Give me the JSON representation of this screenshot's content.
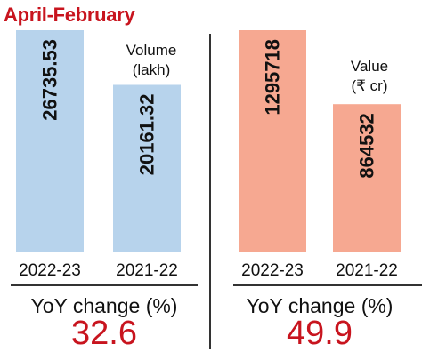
{
  "title": "April-February",
  "chart_data": [
    {
      "type": "bar",
      "categories": [
        "2022-23",
        "2021-22"
      ],
      "values": [
        26735.53,
        20161.32
      ],
      "value_labels": [
        "26735.53",
        "20161.32"
      ],
      "label_line1": "Volume",
      "label_line2": "(lakh)",
      "ylim": [
        0,
        26735.53
      ],
      "color": "#b7d3ec",
      "yoy_label": "YoY change (%)",
      "yoy_value": "32.6"
    },
    {
      "type": "bar",
      "categories": [
        "2022-23",
        "2021-22"
      ],
      "values": [
        1295718,
        864532
      ],
      "value_labels": [
        "1295718",
        "864532"
      ],
      "label_line1": "Value",
      "label_line2": "(₹ cr)",
      "ylim": [
        0,
        1295718
      ],
      "color": "#f6a891",
      "yoy_label": "YoY change (%)",
      "yoy_value": "49.9"
    }
  ]
}
